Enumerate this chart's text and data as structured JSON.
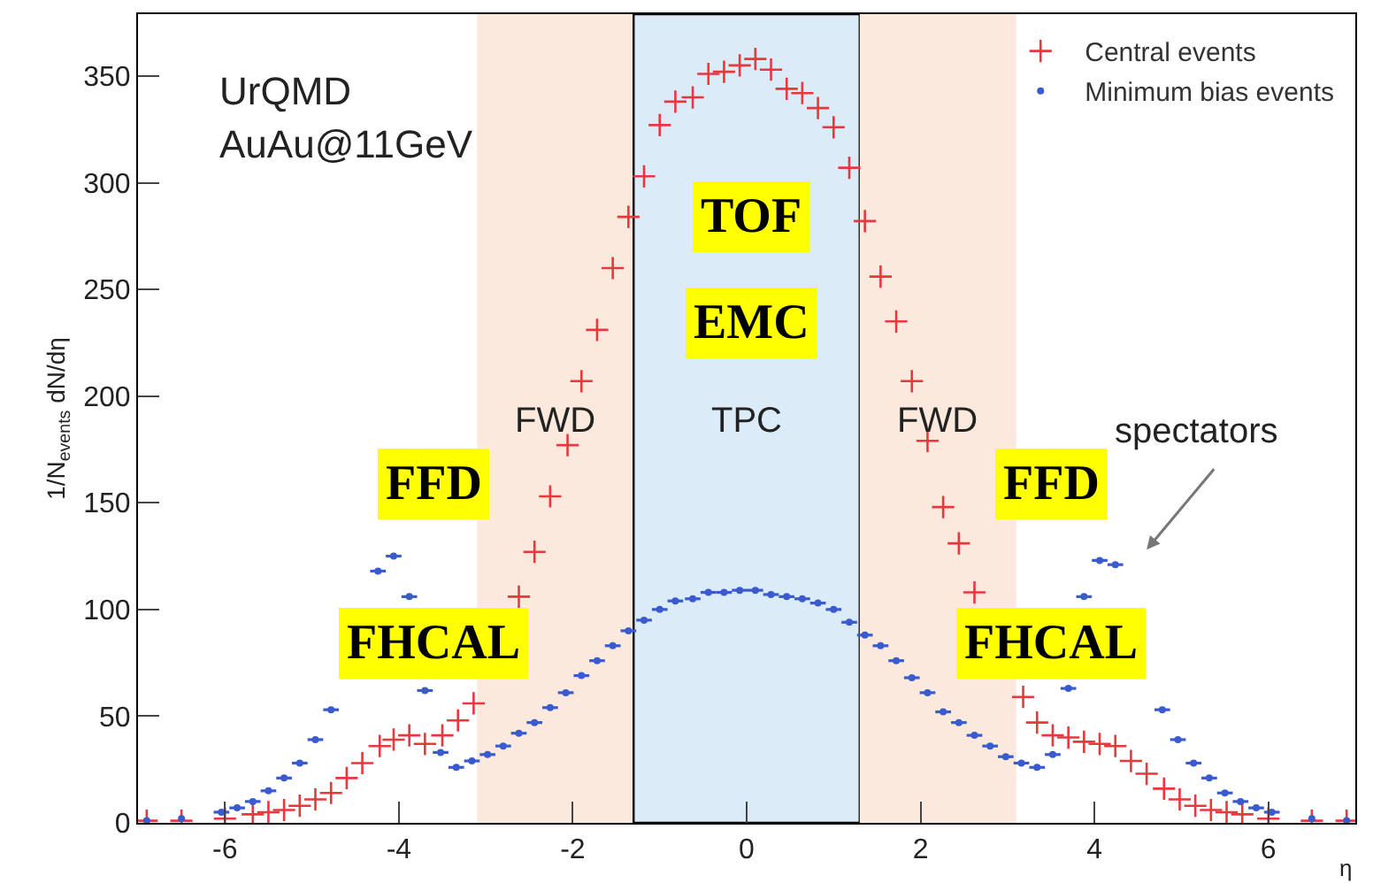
{
  "chart_data": {
    "type": "scatter",
    "xlabel": "η",
    "ylabel": "1/N$_{events}$ dN/dη",
    "xlim": [
      -7,
      7
    ],
    "ylim": [
      0,
      379
    ],
    "xticks": [
      -6,
      -4,
      -2,
      0,
      2,
      4,
      6
    ],
    "yticks": [
      0,
      50,
      100,
      150,
      200,
      250,
      300,
      350
    ],
    "grid": false,
    "legend": "top right",
    "bands": [
      {
        "axis": "x",
        "from": -3.1,
        "to": -1.3,
        "label": "FWD",
        "color": "#fbe9dd"
      },
      {
        "axis": "x",
        "from": -1.3,
        "to": 1.3,
        "label": "TPC",
        "color": "#dcebf8"
      },
      {
        "axis": "x",
        "from": 1.3,
        "to": 3.1,
        "label": "FWD",
        "color": "#fbe9dd"
      }
    ],
    "annotations": [
      "UrQMD",
      "AuAu@11GeV",
      "TOF",
      "EMC",
      "FFD",
      "FFD",
      "FHCAL",
      "FHCAL",
      "spectators"
    ],
    "series": [
      {
        "name": "Central events",
        "color": "#e8383d",
        "marker": "cross",
        "x": [
          -6.9,
          -6.5,
          -6.0,
          -5.68,
          -5.5,
          -5.32,
          -5.14,
          -4.96,
          -4.78,
          -4.6,
          -4.42,
          -4.22,
          -4.06,
          -3.88,
          -3.7,
          -3.5,
          -3.32,
          -3.14,
          -2.96,
          -2.8,
          -2.62,
          -2.44,
          -2.26,
          -2.06,
          -1.9,
          -1.72,
          -1.54,
          -1.36,
          -1.18,
          -1.0,
          -0.82,
          -0.62,
          -0.44,
          -0.26,
          -0.08,
          0.1,
          0.28,
          0.46,
          0.64,
          0.82,
          1.0,
          1.18,
          1.36,
          1.54,
          1.72,
          1.9,
          2.08,
          2.26,
          2.44,
          2.62,
          2.8,
          2.98,
          3.18,
          3.34,
          3.52,
          3.7,
          3.88,
          4.06,
          4.24,
          4.42,
          4.6,
          4.8,
          4.98,
          5.16,
          5.34,
          5.52,
          5.7,
          6.0,
          6.5,
          6.9
        ],
        "values": [
          1,
          1,
          2,
          4,
          5,
          6,
          8,
          11,
          14,
          21,
          28,
          36,
          39,
          41,
          37,
          41,
          48,
          56,
          null,
          null,
          106,
          127,
          153,
          177,
          207,
          231,
          260,
          284,
          303,
          327,
          338,
          340,
          351,
          352,
          355,
          358,
          353,
          344,
          342,
          335,
          326,
          307,
          282,
          256,
          235,
          207,
          179,
          148,
          131,
          108,
          null,
          null,
          59,
          47,
          41,
          40,
          38,
          37,
          36,
          29,
          23,
          16,
          11,
          8,
          6,
          5,
          4,
          2,
          1,
          1
        ]
      },
      {
        "name": "Minimum bias events",
        "color": "#3a5bd0",
        "marker": "circle",
        "x": [
          -6.9,
          -6.5,
          -6.04,
          -5.86,
          -5.68,
          -5.5,
          -5.32,
          -5.14,
          -4.96,
          -4.78,
          -4.6,
          -4.42,
          -4.24,
          -4.06,
          -3.88,
          -3.7,
          -3.52,
          -3.34,
          -3.16,
          -2.98,
          -2.8,
          -2.62,
          -2.44,
          -2.26,
          -2.08,
          -1.9,
          -1.72,
          -1.54,
          -1.36,
          -1.18,
          -1.0,
          -0.82,
          -0.62,
          -0.44,
          -0.26,
          -0.08,
          0.1,
          0.28,
          0.46,
          0.64,
          0.82,
          1.0,
          1.18,
          1.36,
          1.54,
          1.72,
          1.9,
          2.08,
          2.26,
          2.44,
          2.62,
          2.8,
          2.98,
          3.16,
          3.34,
          3.52,
          3.7,
          3.88,
          4.06,
          4.24,
          4.42,
          4.6,
          4.78,
          4.96,
          5.14,
          5.32,
          5.5,
          5.68,
          5.86,
          6.04,
          6.5,
          6.9
        ],
        "values": [
          1,
          2,
          5,
          7,
          10,
          15,
          21,
          28,
          39,
          53,
          null,
          null,
          118,
          125,
          106,
          62,
          33,
          26,
          29,
          32,
          36,
          42,
          47,
          54,
          61,
          69,
          76,
          83,
          90,
          95,
          100,
          104,
          105,
          108,
          108,
          109,
          109,
          107,
          106,
          105,
          103,
          100,
          94,
          88,
          83,
          76,
          68,
          61,
          52,
          47,
          41,
          36,
          31,
          28,
          26,
          32,
          63,
          106,
          123,
          121,
          null,
          null,
          53,
          39,
          28,
          21,
          14,
          10,
          7,
          5,
          2,
          1
        ],
        "xerrors": [
          null,
          null,
          0.09,
          0.09,
          0.09,
          0.09,
          0.09,
          0.09,
          0.09,
          0.09,
          null,
          null,
          0.09,
          0.09,
          0.09,
          0.09,
          0.09,
          0.09,
          0.09,
          0.09,
          0.09,
          0.09,
          0.09,
          0.09,
          0.09,
          0.09,
          0.09,
          0.09,
          0.09,
          0.09,
          0.09,
          0.09,
          0.09,
          0.09,
          0.09,
          0.09,
          0.09,
          0.09,
          0.09,
          0.09,
          0.09,
          0.09,
          0.09,
          0.09,
          0.09,
          0.09,
          0.09,
          0.09,
          0.09,
          0.09,
          0.09,
          0.09,
          0.09,
          0.09,
          0.09,
          0.09,
          0.09,
          0.09,
          0.09,
          0.09,
          null,
          null,
          0.09,
          0.09,
          0.09,
          0.09,
          0.09,
          0.09,
          0.09,
          0.09,
          null,
          null
        ]
      }
    ]
  }
}
